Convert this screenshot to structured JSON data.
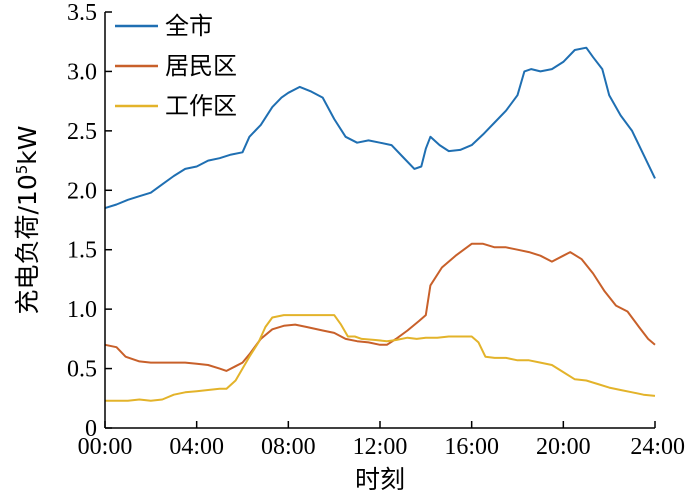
{
  "chart_data": {
    "type": "line",
    "xlabel": "时刻",
    "ylabel_parts": [
      "充电负荷/10",
      "5",
      "kW"
    ],
    "ylim": [
      0,
      3.5
    ],
    "xlim": [
      0,
      24
    ],
    "x_ticks": [
      {
        "value": 0,
        "label": "00:00"
      },
      {
        "value": 4,
        "label": "04:00"
      },
      {
        "value": 8,
        "label": "08:00"
      },
      {
        "value": 12,
        "label": "12:00"
      },
      {
        "value": 16,
        "label": "16:00"
      },
      {
        "value": 20,
        "label": "20:00"
      },
      {
        "value": 24,
        "label": "24:00"
      }
    ],
    "y_ticks": [
      {
        "value": 0,
        "label": "0"
      },
      {
        "value": 0.5,
        "label": "0.5"
      },
      {
        "value": 1.0,
        "label": "1.0"
      },
      {
        "value": 1.5,
        "label": "1.5"
      },
      {
        "value": 2.0,
        "label": "2.0"
      },
      {
        "value": 2.5,
        "label": "2.5"
      },
      {
        "value": 3.0,
        "label": "3.0"
      },
      {
        "value": 3.5,
        "label": "3.5"
      }
    ],
    "legend_position": "top-left",
    "grid": false,
    "series": [
      {
        "name": "全市",
        "color": "#1f6fb2",
        "points": [
          [
            0,
            1.85
          ],
          [
            0.5,
            1.88
          ],
          [
            1,
            1.92
          ],
          [
            1.5,
            1.95
          ],
          [
            2,
            1.98
          ],
          [
            2.5,
            2.05
          ],
          [
            3,
            2.12
          ],
          [
            3.5,
            2.18
          ],
          [
            4,
            2.2
          ],
          [
            4.5,
            2.25
          ],
          [
            5,
            2.27
          ],
          [
            5.5,
            2.3
          ],
          [
            6,
            2.32
          ],
          [
            6.3,
            2.45
          ],
          [
            6.8,
            2.55
          ],
          [
            7.3,
            2.7
          ],
          [
            7.7,
            2.78
          ],
          [
            8,
            2.82
          ],
          [
            8.5,
            2.87
          ],
          [
            9,
            2.83
          ],
          [
            9.5,
            2.78
          ],
          [
            10,
            2.6
          ],
          [
            10.5,
            2.45
          ],
          [
            11,
            2.4
          ],
          [
            11.5,
            2.42
          ],
          [
            12,
            2.4
          ],
          [
            12.5,
            2.38
          ],
          [
            13,
            2.28
          ],
          [
            13.5,
            2.18
          ],
          [
            13.8,
            2.2
          ],
          [
            14,
            2.35
          ],
          [
            14.2,
            2.45
          ],
          [
            14.6,
            2.38
          ],
          [
            15,
            2.33
          ],
          [
            15.5,
            2.34
          ],
          [
            16,
            2.38
          ],
          [
            16.5,
            2.47
          ],
          [
            17,
            2.57
          ],
          [
            17.5,
            2.67
          ],
          [
            18,
            2.8
          ],
          [
            18.3,
            3.0
          ],
          [
            18.6,
            3.02
          ],
          [
            19,
            3.0
          ],
          [
            19.5,
            3.02
          ],
          [
            20,
            3.08
          ],
          [
            20.5,
            3.18
          ],
          [
            21,
            3.2
          ],
          [
            21.3,
            3.12
          ],
          [
            21.7,
            3.02
          ],
          [
            22,
            2.8
          ],
          [
            22.5,
            2.63
          ],
          [
            23,
            2.5
          ],
          [
            23.5,
            2.3
          ],
          [
            24,
            2.1
          ]
        ]
      },
      {
        "name": "居民区",
        "color": "#c8602a",
        "points": [
          [
            0,
            0.7
          ],
          [
            0.5,
            0.68
          ],
          [
            0.9,
            0.6
          ],
          [
            1.5,
            0.56
          ],
          [
            2,
            0.55
          ],
          [
            2.5,
            0.55
          ],
          [
            3,
            0.55
          ],
          [
            3.5,
            0.55
          ],
          [
            4,
            0.54
          ],
          [
            4.5,
            0.53
          ],
          [
            5,
            0.5
          ],
          [
            5.3,
            0.48
          ],
          [
            5.7,
            0.52
          ],
          [
            6,
            0.55
          ],
          [
            6.3,
            0.62
          ],
          [
            6.8,
            0.75
          ],
          [
            7.3,
            0.83
          ],
          [
            7.8,
            0.86
          ],
          [
            8.3,
            0.87
          ],
          [
            8.8,
            0.85
          ],
          [
            9.5,
            0.82
          ],
          [
            10,
            0.8
          ],
          [
            10.5,
            0.75
          ],
          [
            11,
            0.73
          ],
          [
            11.5,
            0.72
          ],
          [
            12,
            0.7
          ],
          [
            12.3,
            0.7
          ],
          [
            12.7,
            0.75
          ],
          [
            13.2,
            0.82
          ],
          [
            13.7,
            0.9
          ],
          [
            14,
            0.95
          ],
          [
            14.2,
            1.2
          ],
          [
            14.7,
            1.35
          ],
          [
            15.3,
            1.45
          ],
          [
            16,
            1.55
          ],
          [
            16.5,
            1.55
          ],
          [
            17,
            1.52
          ],
          [
            17.5,
            1.52
          ],
          [
            18,
            1.5
          ],
          [
            18.5,
            1.48
          ],
          [
            19,
            1.45
          ],
          [
            19.5,
            1.4
          ],
          [
            20,
            1.45
          ],
          [
            20.3,
            1.48
          ],
          [
            20.8,
            1.42
          ],
          [
            21.3,
            1.3
          ],
          [
            21.8,
            1.15
          ],
          [
            22.3,
            1.03
          ],
          [
            22.8,
            0.98
          ],
          [
            23.3,
            0.85
          ],
          [
            23.7,
            0.75
          ],
          [
            24,
            0.7
          ]
        ]
      },
      {
        "name": "工作区",
        "color": "#e3b32a",
        "points": [
          [
            0,
            0.23
          ],
          [
            0.5,
            0.23
          ],
          [
            1,
            0.23
          ],
          [
            1.5,
            0.24
          ],
          [
            2,
            0.23
          ],
          [
            2.5,
            0.24
          ],
          [
            3,
            0.28
          ],
          [
            3.5,
            0.3
          ],
          [
            4,
            0.31
          ],
          [
            4.5,
            0.32
          ],
          [
            5,
            0.33
          ],
          [
            5.3,
            0.33
          ],
          [
            5.7,
            0.4
          ],
          [
            6,
            0.5
          ],
          [
            6.3,
            0.6
          ],
          [
            6.7,
            0.72
          ],
          [
            7,
            0.85
          ],
          [
            7.3,
            0.93
          ],
          [
            7.8,
            0.95
          ],
          [
            8.3,
            0.95
          ],
          [
            9,
            0.95
          ],
          [
            9.5,
            0.95
          ],
          [
            10,
            0.95
          ],
          [
            10.3,
            0.87
          ],
          [
            10.6,
            0.77
          ],
          [
            10.9,
            0.77
          ],
          [
            11.2,
            0.75
          ],
          [
            11.8,
            0.74
          ],
          [
            12.3,
            0.73
          ],
          [
            12.7,
            0.74
          ],
          [
            13.2,
            0.76
          ],
          [
            13.6,
            0.75
          ],
          [
            14,
            0.76
          ],
          [
            14.5,
            0.76
          ],
          [
            15,
            0.77
          ],
          [
            15.5,
            0.77
          ],
          [
            16,
            0.77
          ],
          [
            16.3,
            0.72
          ],
          [
            16.6,
            0.6
          ],
          [
            17,
            0.59
          ],
          [
            17.5,
            0.59
          ],
          [
            18,
            0.57
          ],
          [
            18.5,
            0.57
          ],
          [
            19,
            0.55
          ],
          [
            19.5,
            0.53
          ],
          [
            20,
            0.47
          ],
          [
            20.5,
            0.41
          ],
          [
            21,
            0.4
          ],
          [
            21.5,
            0.37
          ],
          [
            22,
            0.34
          ],
          [
            22.5,
            0.32
          ],
          [
            23,
            0.3
          ],
          [
            23.5,
            0.28
          ],
          [
            24,
            0.27
          ]
        ]
      }
    ]
  }
}
